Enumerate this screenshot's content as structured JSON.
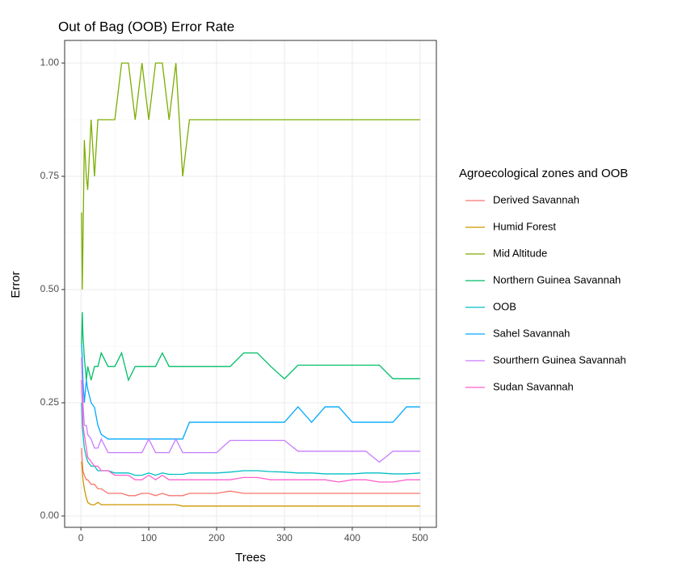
{
  "chart_data": {
    "type": "line",
    "title": "Out of Bag (OOB) Error Rate",
    "xlabel": "Trees",
    "ylabel": "Error",
    "legend_title": "Agroecological zones and OOB",
    "legend": "right",
    "grid": true,
    "minor_grid": true,
    "xlim": [
      -24,
      524
    ],
    "ylim": [
      -0.025,
      1.05
    ],
    "xticks": [
      0,
      100,
      200,
      300,
      400,
      500
    ],
    "yticks": [
      {
        "value": 0,
        "label": "0.00"
      },
      {
        "value": 0.25,
        "label": "0.25"
      },
      {
        "value": 0.5,
        "label": "0.50"
      },
      {
        "value": 0.75,
        "label": "0.75"
      },
      {
        "value": 1,
        "label": "1.00"
      }
    ],
    "x": [
      1,
      2,
      3,
      5,
      8,
      10,
      15,
      20,
      25,
      30,
      40,
      50,
      60,
      70,
      80,
      90,
      100,
      110,
      120,
      130,
      140,
      150,
      160,
      180,
      200,
      220,
      240,
      260,
      280,
      300,
      320,
      340,
      360,
      380,
      400,
      420,
      440,
      460,
      480,
      500
    ],
    "series": [
      {
        "name": "Derived Savannah",
        "color": "#F8766D",
        "values": [
          0.15,
          0.12,
          0.1,
          0.09,
          0.08,
          0.08,
          0.07,
          0.07,
          0.06,
          0.06,
          0.05,
          0.05,
          0.05,
          0.045,
          0.045,
          0.05,
          0.05,
          0.045,
          0.05,
          0.045,
          0.045,
          0.045,
          0.05,
          0.05,
          0.05,
          0.055,
          0.05,
          0.05,
          0.05,
          0.05,
          0.05,
          0.05,
          0.05,
          0.05,
          0.05,
          0.05,
          0.05,
          0.05,
          0.05,
          0.05
        ]
      },
      {
        "name": "Humid Forest",
        "color": "#CD9600",
        "values": [
          0.12,
          0.1,
          0.08,
          0.06,
          0.04,
          0.03,
          0.025,
          0.025,
          0.03,
          0.025,
          0.025,
          0.025,
          0.025,
          0.025,
          0.025,
          0.025,
          0.025,
          0.025,
          0.025,
          0.025,
          0.025,
          0.022,
          0.022,
          0.022,
          0.022,
          0.022,
          0.022,
          0.022,
          0.022,
          0.022,
          0.022,
          0.022,
          0.022,
          0.022,
          0.022,
          0.022,
          0.022,
          0.022,
          0.022,
          0.022
        ]
      },
      {
        "name": "Mid Altitude",
        "color": "#7CAE00",
        "values": [
          0.67,
          0.5,
          0.6,
          0.83,
          0.75,
          0.72,
          0.875,
          0.75,
          0.875,
          0.875,
          0.875,
          0.875,
          1.0,
          1.0,
          0.875,
          1.0,
          0.875,
          1.0,
          1.0,
          0.875,
          1.0,
          0.75,
          0.875,
          0.875,
          0.875,
          0.875,
          0.875,
          0.875,
          0.875,
          0.875,
          0.875,
          0.875,
          0.875,
          0.875,
          0.875,
          0.875,
          0.875,
          0.875,
          0.875,
          0.875
        ]
      },
      {
        "name": "Northern Guinea Savannah",
        "color": "#00BE67",
        "values": [
          0.38,
          0.45,
          0.4,
          0.35,
          0.3,
          0.33,
          0.3,
          0.33,
          0.33,
          0.36,
          0.33,
          0.33,
          0.36,
          0.3,
          0.33,
          0.33,
          0.33,
          0.33,
          0.36,
          0.33,
          0.33,
          0.33,
          0.33,
          0.33,
          0.33,
          0.33,
          0.36,
          0.36,
          0.33,
          0.303,
          0.333,
          0.333,
          0.333,
          0.333,
          0.333,
          0.333,
          0.333,
          0.303,
          0.303,
          0.303
        ]
      },
      {
        "name": "OOB",
        "color": "#00BFC4",
        "values": [
          0.25,
          0.2,
          0.18,
          0.15,
          0.13,
          0.12,
          0.11,
          0.11,
          0.1,
          0.1,
          0.1,
          0.095,
          0.095,
          0.095,
          0.09,
          0.09,
          0.095,
          0.09,
          0.095,
          0.092,
          0.092,
          0.092,
          0.095,
          0.095,
          0.095,
          0.097,
          0.1,
          0.1,
          0.098,
          0.097,
          0.095,
          0.095,
          0.093,
          0.093,
          0.093,
          0.095,
          0.095,
          0.093,
          0.093,
          0.095
        ]
      },
      {
        "name": "Sahel Savannah",
        "color": "#00A9FF",
        "values": [
          0.38,
          0.35,
          0.3,
          0.25,
          0.3,
          0.28,
          0.25,
          0.24,
          0.2,
          0.18,
          0.17,
          0.17,
          0.17,
          0.17,
          0.17,
          0.17,
          0.17,
          0.17,
          0.17,
          0.17,
          0.17,
          0.17,
          0.207,
          0.207,
          0.207,
          0.207,
          0.207,
          0.207,
          0.207,
          0.207,
          0.241,
          0.207,
          0.241,
          0.241,
          0.207,
          0.207,
          0.207,
          0.207,
          0.241,
          0.241
        ]
      },
      {
        "name": "Sourthern Guinea Savannah",
        "color": "#C77CFF",
        "values": [
          0.35,
          0.3,
          0.25,
          0.2,
          0.2,
          0.18,
          0.17,
          0.15,
          0.15,
          0.17,
          0.14,
          0.14,
          0.14,
          0.14,
          0.14,
          0.14,
          0.17,
          0.14,
          0.14,
          0.14,
          0.17,
          0.14,
          0.14,
          0.14,
          0.14,
          0.167,
          0.167,
          0.167,
          0.167,
          0.167,
          0.143,
          0.143,
          0.143,
          0.143,
          0.143,
          0.143,
          0.119,
          0.143,
          0.143,
          0.143
        ]
      },
      {
        "name": "Sudan Savannah",
        "color": "#FF61CC",
        "values": [
          0.3,
          0.25,
          0.2,
          0.18,
          0.15,
          0.13,
          0.12,
          0.11,
          0.11,
          0.1,
          0.1,
          0.09,
          0.09,
          0.09,
          0.08,
          0.08,
          0.09,
          0.08,
          0.09,
          0.08,
          0.08,
          0.08,
          0.08,
          0.08,
          0.08,
          0.08,
          0.085,
          0.085,
          0.08,
          0.08,
          0.08,
          0.08,
          0.08,
          0.075,
          0.08,
          0.08,
          0.075,
          0.075,
          0.08,
          0.08
        ]
      }
    ]
  }
}
